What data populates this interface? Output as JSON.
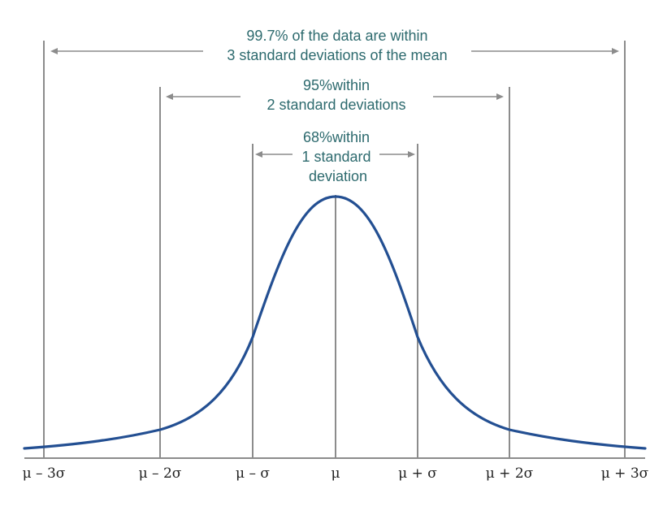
{
  "annotations": {
    "three_sigma": {
      "line1": "99.7% of the data are within",
      "line2": "3 standard deviations of the mean"
    },
    "two_sigma": {
      "line1": "95%within",
      "line2": "2 standard deviations"
    },
    "one_sigma": {
      "line1": "68%within",
      "line2": "1 standard",
      "line3": "deviation"
    }
  },
  "axis_labels": [
    "μ – 3σ",
    "μ – 2σ",
    "μ – σ",
    "μ",
    "μ + σ",
    "μ + 2σ",
    "μ + 3σ"
  ],
  "colors": {
    "curve": "#234f92",
    "text": "#2d6a6e",
    "lines": "#8c8c8c"
  }
}
